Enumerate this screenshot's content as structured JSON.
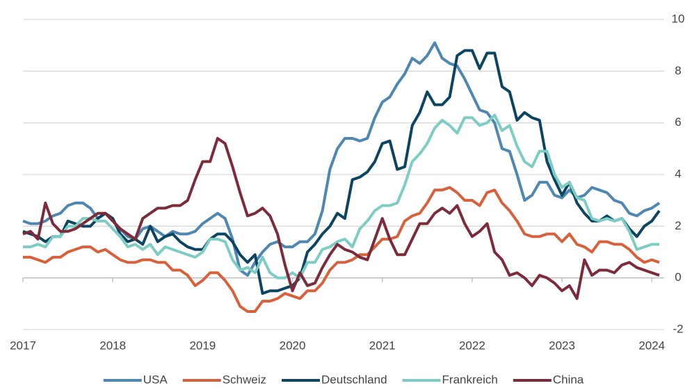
{
  "chart_data": {
    "type": "line",
    "categories": [
      "2017",
      null,
      null,
      null,
      null,
      null,
      null,
      null,
      null,
      null,
      null,
      null,
      "2018",
      null,
      null,
      null,
      null,
      null,
      null,
      null,
      null,
      null,
      null,
      null,
      "2019",
      null,
      null,
      null,
      null,
      null,
      null,
      null,
      null,
      null,
      null,
      null,
      "2020",
      null,
      null,
      null,
      null,
      null,
      null,
      null,
      null,
      null,
      null,
      null,
      "2021",
      null,
      null,
      null,
      null,
      null,
      null,
      null,
      null,
      null,
      null,
      null,
      "2022",
      null,
      null,
      null,
      null,
      null,
      null,
      null,
      null,
      null,
      null,
      null,
      "2023",
      null,
      null,
      null,
      null,
      null,
      null,
      null,
      null,
      null,
      null,
      null,
      "2024",
      null
    ],
    "series": [
      {
        "name": "USA",
        "color": "#4e87b1",
        "values": [
          2.2,
          2.1,
          2.1,
          2.2,
          2.4,
          2.5,
          2.8,
          2.9,
          2.9,
          2.7,
          2.3,
          2.5,
          2.2,
          1.9,
          1.6,
          1.5,
          1.9,
          2.0,
          1.8,
          1.6,
          1.8,
          1.7,
          1.7,
          1.8,
          2.1,
          2.3,
          2.5,
          2.3,
          1.5,
          0.3,
          0.1,
          0.6,
          1.0,
          1.3,
          1.4,
          1.2,
          1.2,
          1.4,
          1.4,
          1.7,
          2.6,
          4.2,
          5.0,
          5.4,
          5.4,
          5.3,
          5.4,
          6.2,
          6.8,
          7.0,
          7.5,
          7.9,
          8.5,
          8.3,
          8.6,
          9.1,
          8.5,
          8.3,
          8.2,
          7.7,
          7.1,
          6.5,
          6.4,
          6.0,
          5.0,
          4.9,
          4.0,
          3.0,
          3.2,
          3.7,
          3.7,
          3.2,
          3.1,
          3.4,
          3.1,
          3.2,
          3.5,
          3.4,
          3.3,
          3.0,
          2.9,
          2.5,
          2.4,
          2.6,
          2.7,
          2.9
        ]
      },
      {
        "name": "Schweiz",
        "color": "#d8613c",
        "values": [
          0.8,
          0.8,
          0.7,
          0.6,
          0.8,
          0.8,
          1.0,
          1.1,
          1.2,
          1.2,
          1.0,
          1.1,
          0.9,
          0.7,
          0.6,
          0.6,
          0.7,
          0.7,
          0.6,
          0.6,
          0.3,
          0.3,
          0.1,
          -0.3,
          -0.1,
          0.2,
          0.2,
          -0.1,
          -0.5,
          -1.1,
          -1.3,
          -1.3,
          -0.9,
          -0.9,
          -0.8,
          -0.6,
          -0.7,
          -0.8,
          -0.5,
          -0.5,
          -0.2,
          0.3,
          0.6,
          0.6,
          0.7,
          0.9,
          0.9,
          1.2,
          1.5,
          1.5,
          1.6,
          2.2,
          2.4,
          2.5,
          2.9,
          3.4,
          3.4,
          3.5,
          3.3,
          3.0,
          3.0,
          2.8,
          3.3,
          3.4,
          2.9,
          2.6,
          2.2,
          1.7,
          1.6,
          1.6,
          1.7,
          1.7,
          1.4,
          1.7,
          1.3,
          1.2,
          1.0,
          1.4,
          1.4,
          1.3,
          1.3,
          1.1,
          0.8,
          0.6,
          0.7,
          0.6
        ]
      },
      {
        "name": "Deutschland",
        "color": "#0c4562",
        "values": [
          1.8,
          1.7,
          1.6,
          1.4,
          1.6,
          1.6,
          2.2,
          2.1,
          2.0,
          2.0,
          2.3,
          2.5,
          2.3,
          1.7,
          1.4,
          1.5,
          1.3,
          2.0,
          1.4,
          1.6,
          1.7,
          1.4,
          1.2,
          1.1,
          1.1,
          1.5,
          1.7,
          1.7,
          1.4,
          0.9,
          0.6,
          0.9,
          -0.6,
          -0.5,
          -0.5,
          -0.4,
          -0.3,
          0.0,
          1.0,
          1.3,
          1.7,
          2.0,
          2.5,
          2.3,
          3.8,
          3.9,
          4.1,
          4.5,
          5.2,
          5.3,
          4.2,
          4.3,
          5.9,
          6.4,
          7.2,
          6.7,
          6.7,
          7.0,
          8.6,
          8.8,
          8.8,
          8.1,
          8.7,
          8.7,
          7.4,
          7.2,
          6.1,
          6.4,
          6.2,
          6.1,
          4.5,
          3.8,
          3.2,
          3.7,
          2.9,
          2.5,
          2.2,
          2.2,
          2.4,
          2.2,
          2.3,
          1.9,
          1.6,
          2.0,
          2.2,
          2.6
        ]
      },
      {
        "name": "Frankreich",
        "color": "#7dcdc4",
        "values": [
          1.2,
          1.2,
          1.3,
          1.2,
          1.6,
          1.6,
          2.0,
          2.0,
          2.3,
          2.3,
          2.2,
          2.2,
          1.9,
          1.6,
          1.2,
          1.3,
          1.1,
          1.3,
          0.9,
          1.2,
          1.1,
          1.0,
          0.9,
          0.8,
          1.0,
          1.5,
          1.5,
          1.4,
          0.7,
          0.3,
          0.4,
          0.2,
          0.8,
          0.2,
          0.0,
          0.0,
          0.2,
          0.0,
          0.6,
          0.6,
          1.1,
          1.2,
          1.4,
          1.5,
          1.2,
          1.9,
          2.2,
          2.6,
          2.8,
          2.8,
          2.9,
          3.6,
          4.5,
          4.8,
          5.2,
          5.8,
          6.1,
          5.9,
          5.6,
          6.2,
          6.2,
          5.9,
          6.0,
          6.3,
          5.7,
          5.9,
          5.1,
          4.5,
          4.3,
          4.9,
          4.9,
          4.0,
          3.5,
          3.7,
          3.1,
          3.0,
          2.3,
          2.2,
          2.3,
          2.2,
          2.3,
          1.8,
          1.1,
          1.2,
          1.3,
          1.3
        ]
      },
      {
        "name": "China",
        "color": "#7d2a3b",
        "values": [
          1.7,
          1.8,
          1.5,
          2.9,
          2.1,
          1.8,
          1.8,
          1.9,
          2.1,
          2.3,
          2.5,
          2.5,
          2.2,
          1.9,
          1.7,
          1.5,
          2.3,
          2.5,
          2.7,
          2.7,
          2.8,
          2.8,
          3.0,
          3.8,
          4.5,
          4.5,
          5.4,
          5.2,
          4.3,
          3.3,
          2.4,
          2.5,
          2.7,
          2.4,
          1.7,
          0.5,
          -0.5,
          0.2,
          -0.3,
          -0.2,
          0.4,
          0.9,
          1.3,
          1.1,
          1.0,
          0.8,
          0.7,
          1.5,
          2.3,
          1.5,
          0.9,
          0.9,
          1.5,
          2.1,
          2.1,
          2.5,
          2.7,
          2.5,
          2.8,
          2.1,
          1.6,
          1.8,
          2.1,
          1.0,
          0.7,
          0.1,
          0.2,
          0.0,
          -0.3,
          0.1,
          0.0,
          -0.2,
          -0.5,
          -0.3,
          -0.8,
          0.7,
          0.1,
          0.3,
          0.3,
          0.2,
          0.5,
          0.6,
          0.4,
          0.3,
          0.2,
          0.1
        ]
      }
    ],
    "ylim": [
      -2,
      10
    ],
    "yticks": [
      -2,
      0,
      2,
      4,
      6,
      8,
      10
    ],
    "y_axis_side": "right",
    "grid": true,
    "legend": "bottom"
  }
}
